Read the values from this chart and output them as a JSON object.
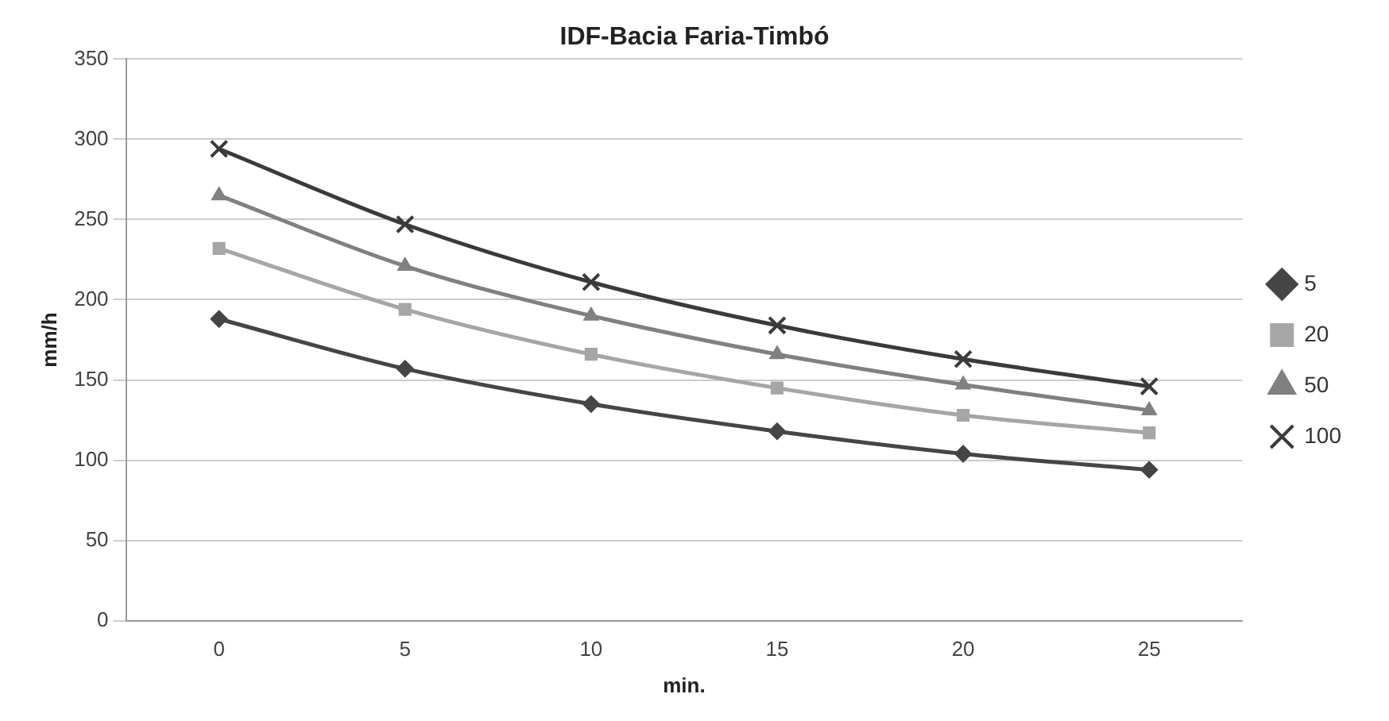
{
  "chart_data": {
    "type": "line",
    "title": "IDF-Bacia Faria-Timbó",
    "xlabel": "min.",
    "ylabel": "mm/h",
    "categories": [
      "0",
      "5",
      "10",
      "15",
      "20",
      "25"
    ],
    "ylim": [
      0,
      350
    ],
    "yticks": [
      0,
      50,
      100,
      150,
      200,
      250,
      300,
      350
    ],
    "grid": "y",
    "legend": "right",
    "series": [
      {
        "name": "5",
        "color": "#454545",
        "marker": "diamond",
        "values": [
          188,
          157,
          135,
          118,
          104,
          94
        ]
      },
      {
        "name": "20",
        "color": "#a6a6a6",
        "marker": "square",
        "values": [
          232,
          194,
          166,
          145,
          128,
          117
        ]
      },
      {
        "name": "50",
        "color": "#808080",
        "marker": "triangle",
        "values": [
          265,
          221,
          190,
          166,
          147,
          131
        ]
      },
      {
        "name": "100",
        "color": "#3a3a3a",
        "marker": "cross",
        "values": [
          294,
          247,
          211,
          184,
          163,
          146
        ]
      }
    ]
  }
}
